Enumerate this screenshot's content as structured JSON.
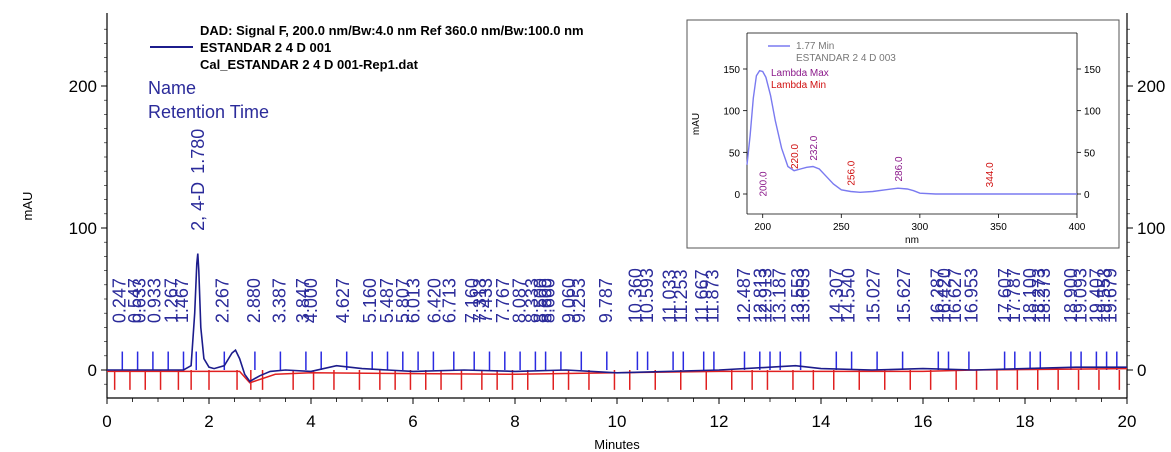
{
  "chart_data": [
    {
      "type": "line",
      "title_lines": [
        "DAD: Signal F, 200.0 nm/Bw:4.0 nm Ref 360.0 nm/Bw:100.0 nm",
        "ESTANDAR 2 4 D 001",
        "Cal_ESTANDAR 2 4 D 001-Rep1.dat"
      ],
      "xlabel": "Minutes",
      "ylabel": "mAU",
      "xlim": [
        0,
        20
      ],
      "ylim": [
        -20,
        250
      ],
      "x_ticks": [
        0,
        2,
        4,
        6,
        8,
        10,
        12,
        14,
        16,
        18,
        20
      ],
      "y_ticks": [
        0,
        100,
        200
      ],
      "annotation_header": [
        "Name",
        "Retention Time"
      ],
      "colors": {
        "trace": "#1c1c8c",
        "baseline": "#e02020",
        "labels": "#2b2b9a",
        "markers_blue": "#2a2ae0"
      },
      "named_peak": {
        "name": "2, 4-D",
        "time": "1.780"
      },
      "series": [
        {
          "name": "ESTANDAR 2 4 D 001",
          "x": [
            0,
            0.5,
            1,
            1.5,
            1.65,
            1.72,
            1.76,
            1.78,
            1.8,
            1.84,
            1.9,
            2.0,
            2.1,
            2.3,
            2.45,
            2.52,
            2.6,
            2.7,
            2.8,
            2.9,
            3.0,
            3.2,
            3.5,
            4.0,
            4.5,
            5.0,
            5.5,
            6.0,
            7.0,
            8.0,
            9.0,
            10,
            11,
            12,
            13,
            13.5,
            14,
            15,
            16,
            17,
            18,
            19,
            20
          ],
          "y": [
            0,
            0,
            0,
            0,
            3,
            40,
            75,
            82,
            70,
            30,
            8,
            2,
            1,
            3,
            12,
            14,
            8,
            -3,
            -8,
            -6,
            -4,
            -1,
            0,
            -1,
            3,
            1,
            0,
            -1,
            0,
            -1,
            0,
            -2,
            -1,
            0,
            2,
            3,
            1,
            0,
            1,
            0,
            1,
            2,
            2
          ]
        }
      ],
      "retention_times": [
        "0.247",
        "0.547",
        "0.633",
        "0.933",
        "1.267",
        "1.467",
        "2.267",
        "2.880",
        "3.387",
        "3.847",
        "4.000",
        "4.627",
        "5.160",
        "5.487",
        "5.807",
        "6.013",
        "6.420",
        "6.713",
        "7.160",
        "7.313",
        "7.433",
        "7.767",
        "8.087",
        "8.333",
        "8.500",
        "8.600",
        "8.660",
        "9.060",
        "9.253",
        "9.787",
        "10.360",
        "10.593",
        "11.033",
        "11.253",
        "11.667",
        "11.873",
        "12.487",
        "12.813",
        "12.913",
        "13.187",
        "13.553",
        "13.653",
        "14.307",
        "14.540",
        "15.027",
        "15.627",
        "16.287",
        "16.420",
        "16.627",
        "16.953",
        "17.607",
        "17.787",
        "18.100",
        "18.273",
        "18.373",
        "18.900",
        "19.093",
        "19.407",
        "19.553",
        "19.679"
      ],
      "blue_markers": [
        0.3,
        0.6,
        0.9,
        1.2,
        1.5,
        1.75,
        2.3,
        2.9,
        3.4,
        3.9,
        4.2,
        4.7,
        5.2,
        5.5,
        5.8,
        6.1,
        6.4,
        6.8,
        7.2,
        7.5,
        7.8,
        8.1,
        8.4,
        8.6,
        8.9,
        9.3,
        9.8,
        10.4,
        10.6,
        11.1,
        11.3,
        11.7,
        11.9,
        12.5,
        12.8,
        13.0,
        13.2,
        13.6,
        14.3,
        14.6,
        15.1,
        15.6,
        16.3,
        16.5,
        16.9,
        17.6,
        17.8,
        18.1,
        18.3,
        18.9,
        19.1,
        19.4,
        19.6,
        19.8
      ],
      "red_markers": [
        0.15,
        0.45,
        0.75,
        1.05,
        1.4,
        1.65,
        2.0,
        2.55,
        2.82,
        3.05,
        3.65,
        4.05,
        4.45,
        4.95,
        5.35,
        5.65,
        5.95,
        6.25,
        6.55,
        6.95,
        7.35,
        7.65,
        7.95,
        8.25,
        8.75,
        9.05,
        9.45,
        9.95,
        10.25,
        10.75,
        11.25,
        11.75,
        12.25,
        12.65,
        12.95,
        13.45,
        13.85,
        14.25,
        14.75,
        15.25,
        15.75,
        16.15,
        16.65,
        17.05,
        17.45,
        17.85,
        18.25,
        18.65,
        19.05,
        19.45,
        19.85
      ]
    },
    {
      "type": "line",
      "inset": true,
      "legend": [
        "1.77 Min",
        "ESTANDAR 2 4 D 003"
      ],
      "xlabel": "nm",
      "ylabel": "mAU",
      "xlim": [
        190,
        400
      ],
      "ylim": [
        -15,
        170
      ],
      "x_ticks": [
        200,
        250,
        300,
        350,
        400
      ],
      "y_ticks": [
        0,
        50,
        100,
        150
      ],
      "lambda_max_label": "Lambda Max",
      "lambda_min_label": "Lambda Min",
      "colors": {
        "line": "#7a7af0",
        "max": "#8b1a8b",
        "min": "#d01010"
      },
      "series": [
        {
          "name": "1.77 Min",
          "x": [
            190,
            192,
            194,
            196,
            198,
            200,
            202,
            205,
            208,
            212,
            216,
            220,
            224,
            228,
            232,
            236,
            240,
            245,
            250,
            256,
            262,
            270,
            278,
            286,
            292,
            296,
            300,
            310,
            320,
            340,
            360,
            380,
            400
          ],
          "y": [
            35,
            70,
            115,
            142,
            148,
            147,
            140,
            118,
            88,
            55,
            33,
            28,
            30,
            32,
            33,
            30,
            22,
            12,
            5,
            3,
            2,
            3,
            5,
            7,
            6,
            4,
            1,
            0,
            0,
            0,
            0,
            0,
            0
          ]
        }
      ],
      "lambda_max": [
        "200.0",
        "232.0",
        "286.0"
      ],
      "lambda_min": [
        "220.0",
        "256.0",
        "344.0"
      ]
    }
  ]
}
